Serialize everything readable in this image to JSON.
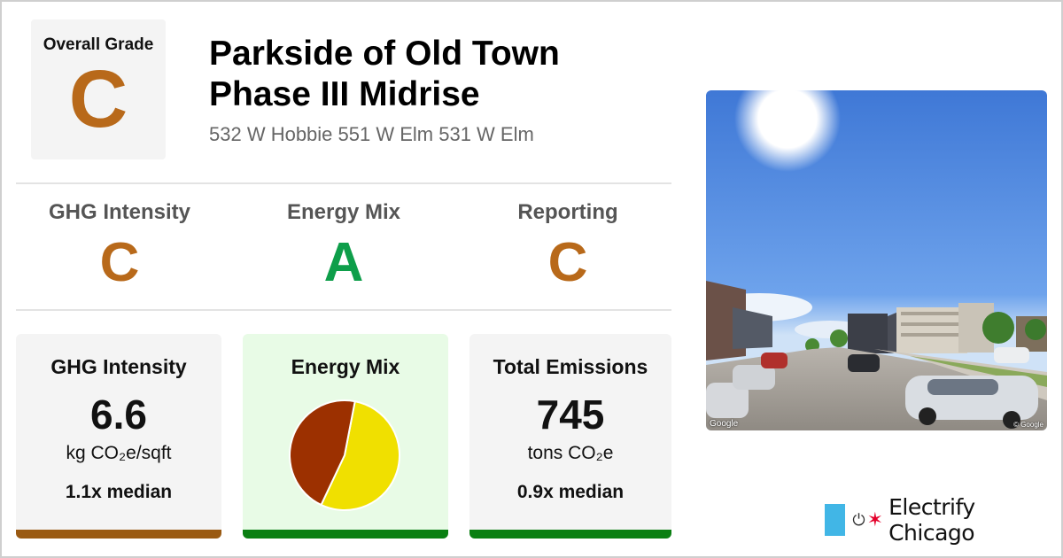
{
  "overall": {
    "label": "Overall Grade",
    "grade": "C",
    "color": "#b8691a"
  },
  "building": {
    "name": "Parkside of Old Town Phase III Midrise",
    "address": "532 W Hobbie 551 W Elm 531 W Elm"
  },
  "subgrades": [
    {
      "label": "GHG Intensity",
      "grade": "C",
      "color": "#b8691a"
    },
    {
      "label": "Energy Mix",
      "grade": "A",
      "color": "#0e9e4a"
    },
    {
      "label": "Reporting",
      "grade": "C",
      "color": "#b8691a"
    }
  ],
  "cards": {
    "ghg": {
      "title": "GHG Intensity",
      "value": "6.6",
      "unit": "kg CO₂e/sqft",
      "median": "1.1x median",
      "bar_color": "#9a5a12"
    },
    "energy_mix": {
      "title": "Energy Mix",
      "bar_color": "#0a7f12"
    },
    "emissions": {
      "title": "Total Emissions",
      "value": "745",
      "unit": "tons CO₂e",
      "median": "0.9x median",
      "bar_color": "#0a7f12"
    }
  },
  "chart_data": {
    "type": "pie",
    "slices": [
      {
        "value": 54,
        "color": "#f0e000"
      },
      {
        "value": 46,
        "color": "#9c3000"
      }
    ]
  },
  "photo": {
    "credit_left": "Google",
    "credit_right": "© Google",
    "icon": "street-view-photo"
  },
  "logo": {
    "text": "Electrify Chicago",
    "flag_color": "#41b6e6",
    "star_color": "#e4002b",
    "plug_icon": "plug-icon",
    "star_icon": "star-icon"
  }
}
